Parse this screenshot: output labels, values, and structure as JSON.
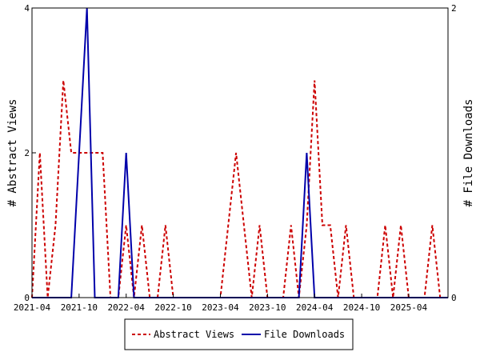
{
  "chart_data": {
    "type": "line",
    "title": "",
    "x_ticks": [
      "2021-04",
      "2021-10",
      "2022-04",
      "2022-10",
      "2023-04",
      "2023-10",
      "2024-04",
      "2024-10",
      "2025-04"
    ],
    "y_left": {
      "label": "# Abstract Views",
      "ticks": [
        "0",
        "2",
        "4"
      ],
      "ylim": [
        0,
        4
      ]
    },
    "y_right": {
      "label": "# File Downloads",
      "ticks": [
        "0",
        "2"
      ],
      "ylim": [
        0,
        2
      ]
    },
    "xlim": [
      "2021-04",
      "2025-09"
    ],
    "grid": false,
    "legend_position": "bottom-center",
    "series": [
      {
        "name": "Abstract Views",
        "axis": "left",
        "color": "#cc0000",
        "style": "dashed",
        "points": [
          [
            "2021-04",
            0
          ],
          [
            "2021-05",
            2
          ],
          [
            "2021-06",
            0
          ],
          [
            "2021-07",
            1
          ],
          [
            "2021-08",
            3
          ],
          [
            "2021-09",
            2
          ],
          [
            "2021-10",
            2
          ],
          [
            "2021-11",
            2
          ],
          [
            "2021-12",
            2
          ],
          [
            "2022-01",
            2
          ],
          [
            "2022-02",
            0
          ],
          [
            "2022-03",
            0
          ],
          [
            "2022-04",
            1
          ],
          [
            "2022-05",
            0
          ],
          [
            "2022-06",
            1
          ],
          [
            "2022-07",
            0
          ],
          [
            "2022-08",
            0
          ],
          [
            "2022-09",
            1
          ],
          [
            "2022-10",
            0
          ],
          [
            "2022-11",
            0
          ],
          [
            "2022-12",
            0
          ],
          [
            "2023-01",
            0
          ],
          [
            "2023-02",
            0
          ],
          [
            "2023-03",
            0
          ],
          [
            "2023-04",
            0
          ],
          [
            "2023-05",
            1
          ],
          [
            "2023-06",
            2
          ],
          [
            "2023-07",
            1
          ],
          [
            "2023-08",
            0
          ],
          [
            "2023-09",
            1
          ],
          [
            "2023-10",
            0
          ],
          [
            "2023-11",
            0
          ],
          [
            "2023-12",
            0
          ],
          [
            "2024-01",
            1
          ],
          [
            "2024-02",
            0
          ],
          [
            "2024-03",
            1
          ],
          [
            "2024-04",
            3
          ],
          [
            "2024-05",
            1
          ],
          [
            "2024-06",
            1
          ],
          [
            "2024-07",
            0
          ],
          [
            "2024-08",
            1
          ],
          [
            "2024-09",
            0
          ],
          [
            "2024-10",
            0
          ],
          [
            "2024-11",
            0
          ],
          [
            "2024-12",
            0
          ],
          [
            "2025-01",
            1
          ],
          [
            "2025-02",
            0
          ],
          [
            "2025-03",
            1
          ],
          [
            "2025-04",
            0
          ],
          [
            "2025-05",
            0
          ],
          [
            "2025-06",
            0
          ],
          [
            "2025-07",
            1
          ],
          [
            "2025-08",
            0
          ],
          [
            "2025-09",
            0
          ]
        ]
      },
      {
        "name": "File Downloads",
        "axis": "right",
        "color": "#0000aa",
        "style": "solid",
        "points": [
          [
            "2021-04",
            0
          ],
          [
            "2021-05",
            0
          ],
          [
            "2021-06",
            0
          ],
          [
            "2021-07",
            0
          ],
          [
            "2021-08",
            0
          ],
          [
            "2021-09",
            0
          ],
          [
            "2021-10",
            1
          ],
          [
            "2021-11",
            2
          ],
          [
            "2021-12",
            0
          ],
          [
            "2022-01",
            0
          ],
          [
            "2022-02",
            0
          ],
          [
            "2022-03",
            0
          ],
          [
            "2022-04",
            1
          ],
          [
            "2022-05",
            0
          ],
          [
            "2022-06",
            0
          ],
          [
            "2022-07",
            0
          ],
          [
            "2022-08",
            0
          ],
          [
            "2022-09",
            0
          ],
          [
            "2022-10",
            0
          ],
          [
            "2022-11",
            0
          ],
          [
            "2022-12",
            0
          ],
          [
            "2023-01",
            0
          ],
          [
            "2023-02",
            0
          ],
          [
            "2023-03",
            0
          ],
          [
            "2023-04",
            0
          ],
          [
            "2023-05",
            0
          ],
          [
            "2023-06",
            0
          ],
          [
            "2023-07",
            0
          ],
          [
            "2023-08",
            0
          ],
          [
            "2023-09",
            0
          ],
          [
            "2023-10",
            0
          ],
          [
            "2023-11",
            0
          ],
          [
            "2023-12",
            0
          ],
          [
            "2024-01",
            0
          ],
          [
            "2024-02",
            0
          ],
          [
            "2024-03",
            1
          ],
          [
            "2024-04",
            0
          ],
          [
            "2024-05",
            0
          ],
          [
            "2024-06",
            0
          ],
          [
            "2024-07",
            0
          ],
          [
            "2024-08",
            0
          ],
          [
            "2024-09",
            0
          ],
          [
            "2024-10",
            0
          ],
          [
            "2024-11",
            0
          ],
          [
            "2024-12",
            0
          ],
          [
            "2025-01",
            0
          ],
          [
            "2025-02",
            0
          ],
          [
            "2025-03",
            0
          ],
          [
            "2025-04",
            0
          ],
          [
            "2025-05",
            0
          ],
          [
            "2025-06",
            0
          ],
          [
            "2025-07",
            0
          ],
          [
            "2025-08",
            0
          ],
          [
            "2025-09",
            0
          ]
        ]
      }
    ]
  }
}
